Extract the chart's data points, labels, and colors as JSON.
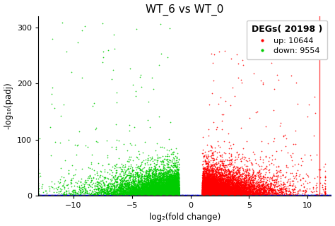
{
  "title": "WT_6 vs WT_0",
  "xlabel": "log₂(fold change)",
  "ylabel": "-log₁₀(padj)",
  "xlim": [
    -13,
    12
  ],
  "ylim": [
    0,
    320
  ],
  "threshold_y": 1.3,
  "threshold_x": 1.0,
  "up_count": 10644,
  "down_count": 9554,
  "total_degs": 20198,
  "color_up": "#FF0000",
  "color_down": "#00CC00",
  "color_ns": "#0000FF",
  "hline_color": "#555555",
  "seed": 42,
  "n_points_up": 10644,
  "n_points_down": 9554,
  "n_points_ns": 6000,
  "xticks": [
    -10,
    -5,
    0,
    5,
    10
  ],
  "yticks": [
    0,
    100,
    200,
    300
  ]
}
